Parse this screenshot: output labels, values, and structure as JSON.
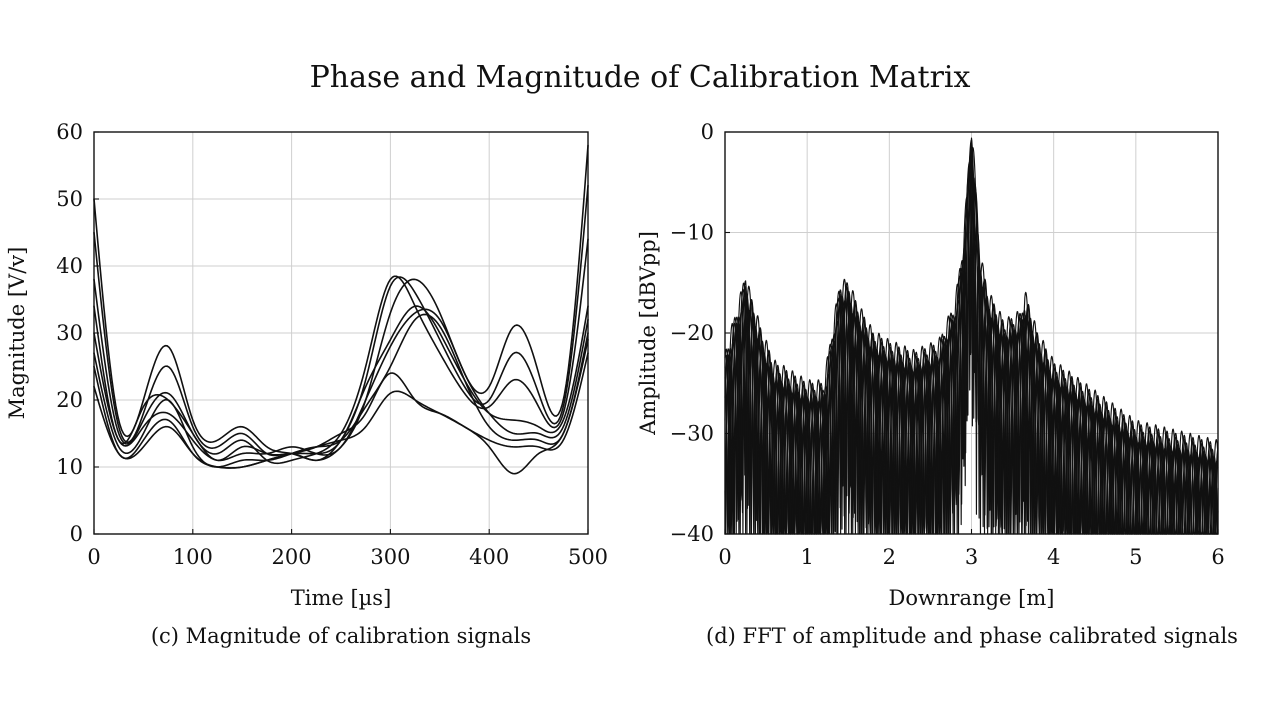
{
  "figure": {
    "title": "Phase and Magnitude of Calibration Matrix"
  },
  "chart_data": [
    {
      "type": "line",
      "caption": "(c) Magnitude of calibration signals",
      "xlabel": "Time [µs]",
      "ylabel": "Magnitude [V/v]",
      "xlim": [
        0,
        500
      ],
      "ylim": [
        0,
        60
      ],
      "x_ticks": [
        0,
        100,
        200,
        300,
        400,
        500
      ],
      "y_ticks": [
        0,
        10,
        20,
        30,
        40,
        50,
        60
      ],
      "grid": true,
      "legend": "none",
      "x": [
        0,
        25,
        50,
        75,
        100,
        125,
        150,
        175,
        200,
        225,
        250,
        275,
        300,
        325,
        350,
        375,
        400,
        425,
        450,
        475,
        500
      ],
      "series": [
        {
          "values": [
            50,
            17,
            20,
            28,
            17,
            14,
            16,
            13,
            12,
            11,
            13,
            20,
            33,
            38,
            33,
            24,
            22,
            31,
            24,
            20,
            58
          ]
        },
        {
          "values": [
            45,
            16,
            18,
            25,
            16,
            13,
            15,
            12,
            12,
            11,
            14,
            23,
            37,
            36,
            29,
            22,
            20,
            27,
            21,
            19,
            52
          ]
        },
        {
          "values": [
            38,
            15,
            17,
            21,
            15,
            12,
            14,
            11,
            11,
            12,
            15,
            25,
            38,
            34,
            27,
            21,
            19,
            23,
            19,
            18,
            44
          ]
        },
        {
          "values": [
            34,
            14,
            19,
            20,
            15,
            11,
            13,
            12,
            12,
            12,
            14,
            22,
            29,
            34,
            30,
            23,
            18,
            17,
            16,
            17,
            34
          ]
        },
        {
          "values": [
            30,
            14,
            16,
            18,
            14,
            11,
            12,
            12,
            13,
            12,
            13,
            20,
            28,
            33,
            32,
            24,
            18,
            15,
            15,
            16,
            32
          ]
        },
        {
          "values": [
            27,
            13,
            15,
            20,
            13,
            10,
            11,
            11,
            12,
            13,
            14,
            19,
            25,
            32,
            31,
            23,
            16,
            14,
            14,
            15,
            30
          ]
        },
        {
          "values": [
            25,
            12,
            14,
            17,
            12,
            10,
            10,
            11,
            12,
            13,
            15,
            18,
            24,
            20,
            18,
            16,
            13,
            9,
            12,
            15,
            29
          ]
        },
        {
          "values": [
            22,
            12,
            13,
            16,
            12,
            10,
            10,
            11,
            12,
            13,
            14,
            16,
            21,
            20,
            18,
            16,
            14,
            13,
            13,
            14,
            27
          ]
        }
      ]
    },
    {
      "type": "line",
      "caption": "(d) FFT of amplitude and phase calibrated signals",
      "xlabel": "Downrange [m]",
      "ylabel": "Amplitude [dBVpp]",
      "xlim": [
        0,
        6
      ],
      "ylim": [
        -40,
        0
      ],
      "x_ticks": [
        0,
        1,
        2,
        3,
        4,
        5,
        6
      ],
      "y_ticks": [
        -40,
        -30,
        -20,
        -10,
        0
      ],
      "y_tick_labels": [
        "−40",
        "−30",
        "−20",
        "−10",
        "0"
      ],
      "grid": true,
      "legend": "none",
      "n_series": 8,
      "envelope": {
        "x": [
          0,
          0.1,
          0.2,
          0.25,
          0.3,
          0.45,
          0.6,
          0.8,
          1.0,
          1.2,
          1.3,
          1.4,
          1.5,
          1.6,
          1.8,
          2.0,
          2.3,
          2.6,
          2.8,
          2.9,
          2.95,
          3.0,
          3.05,
          3.1,
          3.2,
          3.4,
          3.6,
          3.65,
          3.8,
          4.0,
          4.5,
          5.0,
          5.5,
          6.0
        ],
        "y": [
          -23,
          -20,
          -17,
          -15,
          -17,
          -21,
          -24,
          -25,
          -26,
          -26,
          -21,
          -16,
          -16,
          -18,
          -21,
          -22,
          -23,
          -22,
          -18,
          -12,
          -6,
          0,
          -6,
          -13,
          -17,
          -20,
          -19,
          -17,
          -21,
          -24,
          -27,
          -30,
          -31,
          -32
        ]
      },
      "floor_db": -40
    }
  ]
}
